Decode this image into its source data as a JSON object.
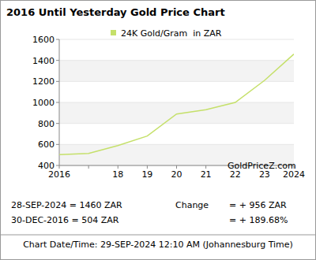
{
  "chart_data": {
    "type": "line",
    "title": "2016 Until Yesterday Gold Price Chart",
    "categories": [
      "2016",
      null,
      "18",
      "19",
      "20",
      "21",
      "22",
      "23",
      "2024"
    ],
    "series": [
      {
        "name": "24K Gold/Gram  in ZAR",
        "color": "#c5e06a",
        "values": [
          504,
          515,
          590,
          680,
          890,
          930,
          1000,
          1210,
          1460
        ]
      }
    ],
    "ylim": [
      400,
      1600
    ],
    "yticks": [
      400,
      600,
      800,
      1000,
      1200,
      1400,
      1600
    ],
    "grid": true,
    "legend": "top",
    "annotations": [
      "28-SEP-2024 = 1460 ZAR",
      "30-DEC-2016 = 504 ZAR",
      "Change",
      "= + 956 ZAR",
      "= + 189.68%",
      "GoldPriceZ.com",
      "Chart Date/Time: 29-SEP-2024 12:10 AM (Johannesburg Time)"
    ]
  }
}
